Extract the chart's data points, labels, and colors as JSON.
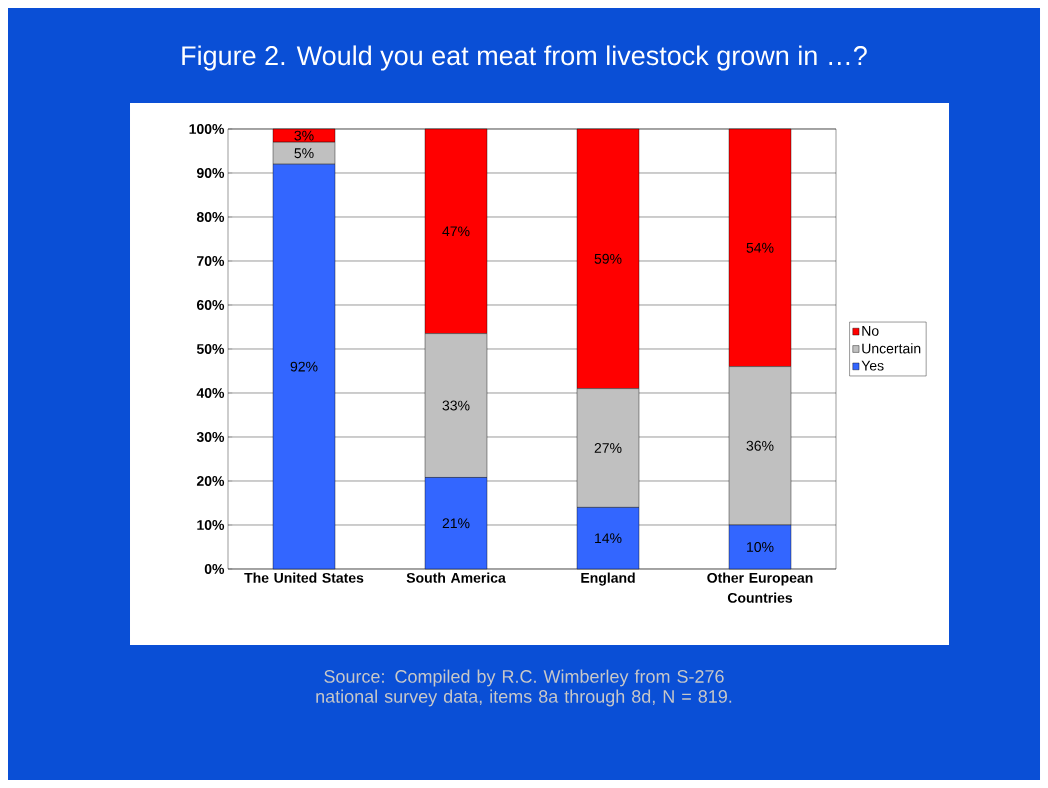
{
  "chart_data": {
    "type": "bar",
    "stacked": true,
    "title": "Figure 2. Would you eat meat from livestock grown in …?",
    "categories": [
      "The United States",
      "South America",
      "England",
      "Other European Countries"
    ],
    "series": [
      {
        "name": "Yes",
        "color": "#3366ff",
        "values": [
          92,
          20.8,
          14,
          10
        ],
        "value_labels": [
          "92%",
          "21%",
          "14%",
          "10%"
        ]
      },
      {
        "name": "Uncertain",
        "color": "#c0c0c0",
        "values": [
          5,
          32.7,
          27,
          36
        ],
        "value_labels": [
          "5%",
          "33%",
          "27%",
          "36%"
        ]
      },
      {
        "name": "No",
        "color": "#ff0000",
        "values": [
          3,
          46.5,
          59,
          54
        ],
        "value_labels": [
          "3%",
          "47%",
          "59%",
          "54%"
        ]
      }
    ],
    "ylim": [
      0,
      100
    ],
    "yticks": [
      {
        "value": 0,
        "label": "0%"
      },
      {
        "value": 10,
        "label": "10%"
      },
      {
        "value": 20,
        "label": "20%"
      },
      {
        "value": 30,
        "label": "30%"
      },
      {
        "value": 40,
        "label": "40%"
      },
      {
        "value": 50,
        "label": "50%"
      },
      {
        "value": 60,
        "label": "60%"
      },
      {
        "value": 70,
        "label": "70%"
      },
      {
        "value": 80,
        "label": "80%"
      },
      {
        "value": 90,
        "label": "90%"
      },
      {
        "value": 100,
        "label": "100%"
      }
    ],
    "grid": "y",
    "legend": "right",
    "annotations": [
      "Source:  Compiled by R.C. Wimberley from S-276 national survey data, items 8a through 8d, N = 819."
    ]
  }
}
